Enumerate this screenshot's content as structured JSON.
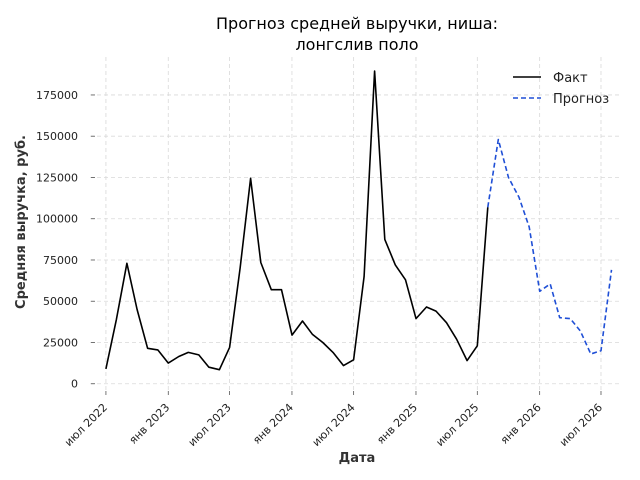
{
  "chart_data": {
    "type": "line",
    "title": [
      "Прогноз средней выручки, ниша:",
      "лонгслив поло"
    ],
    "xlabel": "Дата",
    "ylabel": "Средняя выручка, руб.",
    "x_tick_labels": [
      {
        "label": "июл 2022",
        "date": "2022-07-01"
      },
      {
        "label": "янв 2023",
        "date": "2023-01-01"
      },
      {
        "label": "июл 2023",
        "date": "2023-07-01"
      },
      {
        "label": "янв 2024",
        "date": "2024-01-01"
      },
      {
        "label": "июл 2024",
        "date": "2024-07-01"
      },
      {
        "label": "янв 2025",
        "date": "2025-01-01"
      },
      {
        "label": "июл 2025",
        "date": "2025-07-01"
      },
      {
        "label": "янв 2026",
        "date": "2026-01-01"
      },
      {
        "label": "июл 2026",
        "date": "2026-07-01"
      }
    ],
    "y_ticks": [
      0,
      25000,
      50000,
      75000,
      100000,
      125000,
      150000,
      175000
    ],
    "y_tick_labels": [
      "0",
      "25000",
      "50000",
      "75000",
      "100000",
      "125000",
      "150000",
      "175000"
    ],
    "ylim": [
      -5000,
      198000
    ],
    "xlim": [
      "2022-05-15",
      "2026-09-01"
    ],
    "grid": true,
    "legend_position": "top-right",
    "series": [
      {
        "name": "Факт",
        "color": "#000000",
        "style": "solid",
        "points": [
          {
            "x": "2022-07-01",
            "y": 9000
          },
          {
            "x": "2022-08-01",
            "y": 39000
          },
          {
            "x": "2022-09-01",
            "y": 73000
          },
          {
            "x": "2022-10-01",
            "y": 45000
          },
          {
            "x": "2022-11-01",
            "y": 21500
          },
          {
            "x": "2022-12-01",
            "y": 20500
          },
          {
            "x": "2023-01-01",
            "y": 12500
          },
          {
            "x": "2023-02-01",
            "y": 16500
          },
          {
            "x": "2023-03-01",
            "y": 19000
          },
          {
            "x": "2023-04-01",
            "y": 17500
          },
          {
            "x": "2023-05-01",
            "y": 10000
          },
          {
            "x": "2023-06-01",
            "y": 8500
          },
          {
            "x": "2023-07-01",
            "y": 22000
          },
          {
            "x": "2023-08-01",
            "y": 70000
          },
          {
            "x": "2023-09-01",
            "y": 124500
          },
          {
            "x": "2023-10-01",
            "y": 73500
          },
          {
            "x": "2023-11-01",
            "y": 57000
          },
          {
            "x": "2023-12-01",
            "y": 57000
          },
          {
            "x": "2024-01-01",
            "y": 29500
          },
          {
            "x": "2024-02-01",
            "y": 38000
          },
          {
            "x": "2024-03-01",
            "y": 30000
          },
          {
            "x": "2024-04-01",
            "y": 25000
          },
          {
            "x": "2024-05-01",
            "y": 19000
          },
          {
            "x": "2024-06-01",
            "y": 11000
          },
          {
            "x": "2024-07-01",
            "y": 14500
          },
          {
            "x": "2024-08-01",
            "y": 65000
          },
          {
            "x": "2024-09-01",
            "y": 189500
          },
          {
            "x": "2024-10-01",
            "y": 87500
          },
          {
            "x": "2024-11-01",
            "y": 72000
          },
          {
            "x": "2024-12-01",
            "y": 63000
          },
          {
            "x": "2025-01-01",
            "y": 39500
          },
          {
            "x": "2025-02-01",
            "y": 46500
          },
          {
            "x": "2025-03-01",
            "y": 44000
          },
          {
            "x": "2025-04-01",
            "y": 37000
          },
          {
            "x": "2025-05-01",
            "y": 27000
          },
          {
            "x": "2025-06-01",
            "y": 14000
          },
          {
            "x": "2025-07-01",
            "y": 23000
          },
          {
            "x": "2025-08-01",
            "y": 107000
          }
        ]
      },
      {
        "name": "Прогноз",
        "color": "#1f4fd6",
        "style": "dashed",
        "points": [
          {
            "x": "2025-08-01",
            "y": 107000
          },
          {
            "x": "2025-09-01",
            "y": 148000
          },
          {
            "x": "2025-10-01",
            "y": 125000
          },
          {
            "x": "2025-11-01",
            "y": 113000
          },
          {
            "x": "2025-12-01",
            "y": 95000
          },
          {
            "x": "2026-01-01",
            "y": 56000
          },
          {
            "x": "2026-02-01",
            "y": 60500
          },
          {
            "x": "2026-03-01",
            "y": 40000
          },
          {
            "x": "2026-04-01",
            "y": 39500
          },
          {
            "x": "2026-05-01",
            "y": 32000
          },
          {
            "x": "2026-06-01",
            "y": 18000
          },
          {
            "x": "2026-07-01",
            "y": 20000
          },
          {
            "x": "2026-08-01",
            "y": 69000
          }
        ]
      }
    ]
  }
}
